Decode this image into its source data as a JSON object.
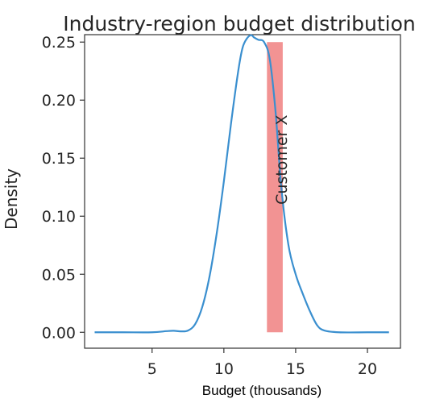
{
  "chart_data": {
    "type": "line",
    "title": "Industry-region budget distribution",
    "xlabel": "Budget (thousands)",
    "ylabel": "Density",
    "xlim": [
      0.3,
      22.3
    ],
    "ylim": [
      -0.0137,
      0.2564
    ],
    "x_ticks": [
      5,
      10,
      15,
      20
    ],
    "y_ticks": [
      0.0,
      0.05,
      0.1,
      0.15,
      0.2,
      0.25
    ],
    "y_tick_labels": [
      "0.00",
      "0.05",
      "0.10",
      "0.15",
      "0.20",
      "0.25"
    ],
    "grid": false,
    "series": [
      {
        "color": "#3a8fcf",
        "x": [
          1.0,
          3.0,
          5.0,
          6.0,
          6.5,
          7.0,
          7.5,
          8.0,
          8.5,
          9.0,
          9.5,
          10.0,
          10.5,
          11.0,
          11.3,
          11.6,
          11.9,
          12.1,
          12.4,
          12.8,
          13.2,
          13.6,
          14.0,
          14.5,
          15.0,
          15.5,
          16.0,
          16.5,
          17.0,
          18.0,
          20.0,
          21.5
        ],
        "y": [
          0.0,
          0.0,
          0.0,
          0.001,
          0.0013,
          0.0008,
          0.0015,
          0.007,
          0.022,
          0.048,
          0.085,
          0.13,
          0.18,
          0.225,
          0.245,
          0.253,
          0.256,
          0.254,
          0.252,
          0.25,
          0.235,
          0.19,
          0.125,
          0.075,
          0.05,
          0.033,
          0.018,
          0.006,
          0.0015,
          0.0,
          0.0,
          0.0
        ]
      }
    ],
    "annotation": {
      "label": "Customer X",
      "band": [
        13.0,
        14.1
      ],
      "band_ylim": [
        0.0,
        0.25
      ],
      "color": "#f08080",
      "text_x": 14.1,
      "text_y": 0.11
    }
  }
}
